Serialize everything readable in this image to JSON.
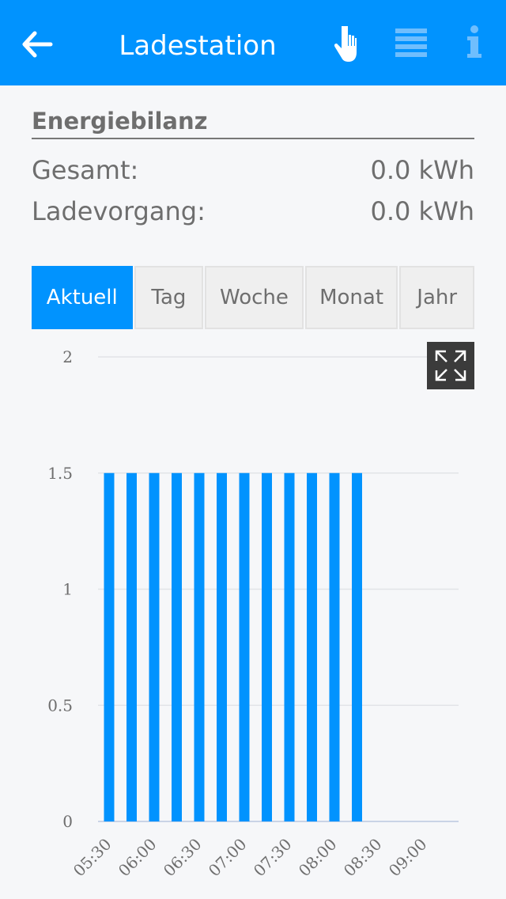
{
  "header": {
    "title": "Ladestation",
    "icons": [
      "arrow-left-icon",
      "hand-pointer-icon",
      "list-icon",
      "info-icon"
    ],
    "color": "#0193fe"
  },
  "energy": {
    "heading": "Energiebilanz",
    "rows": [
      {
        "label": "Gesamt:",
        "value": "0.0 kWh"
      },
      {
        "label": "Ladevorgang:",
        "value": "0.0 kWh"
      }
    ]
  },
  "tabs": [
    {
      "label": "Aktuell",
      "active": true
    },
    {
      "label": "Tag"
    },
    {
      "label": "Woche"
    },
    {
      "label": "Monat"
    },
    {
      "label": "Jahr"
    }
  ],
  "chart_data": {
    "type": "bar",
    "x": [
      "05:30",
      "05:45",
      "06:00",
      "06:15",
      "06:30",
      "06:45",
      "07:00",
      "07:15",
      "07:30",
      "07:45",
      "08:00",
      "08:15"
    ],
    "values": [
      1.5,
      1.5,
      1.5,
      1.5,
      1.5,
      1.5,
      1.5,
      1.5,
      1.5,
      1.5,
      1.5,
      1.5
    ],
    "yticks": [
      "0",
      "0.5",
      "1",
      "1.5",
      "2"
    ],
    "xticks": [
      "05:30",
      "06:00",
      "06:30",
      "07:00",
      "07:30",
      "08:00",
      "08:30",
      "09:00"
    ],
    "ylim": [
      0,
      2
    ],
    "grid": true,
    "bar_color": "#0193fe"
  }
}
